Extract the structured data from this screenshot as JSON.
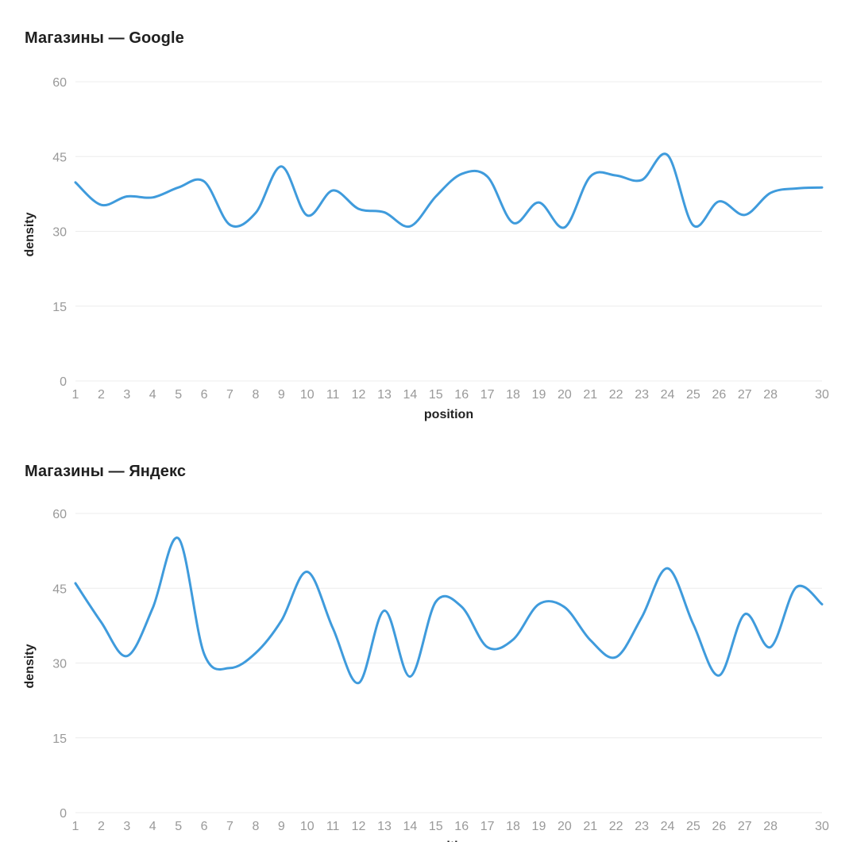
{
  "chart_data": [
    {
      "type": "line",
      "title": "Магазины — Google",
      "xlabel": "position",
      "ylabel": "density",
      "ylim": [
        0,
        60
      ],
      "yticks": [
        "0",
        "15",
        "30",
        "45",
        "60"
      ],
      "xticks": [
        "1",
        "2",
        "3",
        "4",
        "5",
        "6",
        "7",
        "8",
        "9",
        "10",
        "11",
        "12",
        "13",
        "14",
        "15",
        "16",
        "17",
        "18",
        "19",
        "20",
        "21",
        "22",
        "23",
        "24",
        "25",
        "26",
        "27",
        "28",
        "30"
      ],
      "grid": true,
      "legend": "none",
      "color": "#3f9bdc",
      "x": [
        1,
        2,
        3,
        4,
        5,
        6,
        7,
        8,
        9,
        10,
        11,
        12,
        13,
        14,
        15,
        16,
        17,
        18,
        19,
        20,
        21,
        22,
        23,
        24,
        25,
        26,
        27,
        28,
        29,
        30
      ],
      "series": [
        {
          "values": [
            39.8,
            35.3,
            37.0,
            36.8,
            38.8,
            40.0,
            31.3,
            33.7,
            43.0,
            33.2,
            38.2,
            34.5,
            33.8,
            31.0,
            37.0,
            41.5,
            41.0,
            31.7,
            35.8,
            30.8,
            41.0,
            41.2,
            40.3,
            45.3,
            31.2,
            36.0,
            33.3,
            37.7,
            38.6,
            38.8
          ]
        }
      ]
    },
    {
      "type": "line",
      "title": "Магазины — Яндекс",
      "xlabel": "position",
      "ylabel": "density",
      "ylim": [
        0,
        60
      ],
      "yticks": [
        "0",
        "15",
        "30",
        "45",
        "60"
      ],
      "xticks": [
        "1",
        "2",
        "3",
        "4",
        "5",
        "6",
        "7",
        "8",
        "9",
        "10",
        "11",
        "12",
        "13",
        "14",
        "15",
        "16",
        "17",
        "18",
        "19",
        "20",
        "21",
        "22",
        "23",
        "24",
        "25",
        "26",
        "27",
        "28",
        "30"
      ],
      "grid": true,
      "legend": "none",
      "color": "#3f9bdc",
      "x": [
        1,
        2,
        3,
        4,
        5,
        6,
        7,
        8,
        9,
        10,
        11,
        12,
        13,
        14,
        15,
        16,
        17,
        18,
        19,
        20,
        21,
        22,
        23,
        24,
        25,
        26,
        27,
        28,
        29,
        30
      ],
      "series": [
        {
          "values": [
            46.0,
            38.2,
            31.4,
            41.0,
            55.0,
            31.8,
            29.0,
            32.0,
            38.5,
            48.3,
            37.0,
            26.0,
            40.5,
            27.3,
            42.3,
            41.3,
            33.2,
            34.7,
            41.8,
            41.2,
            34.6,
            31.2,
            39.2,
            49.0,
            37.8,
            27.5,
            39.8,
            33.2,
            45.2,
            41.8
          ]
        }
      ]
    }
  ]
}
